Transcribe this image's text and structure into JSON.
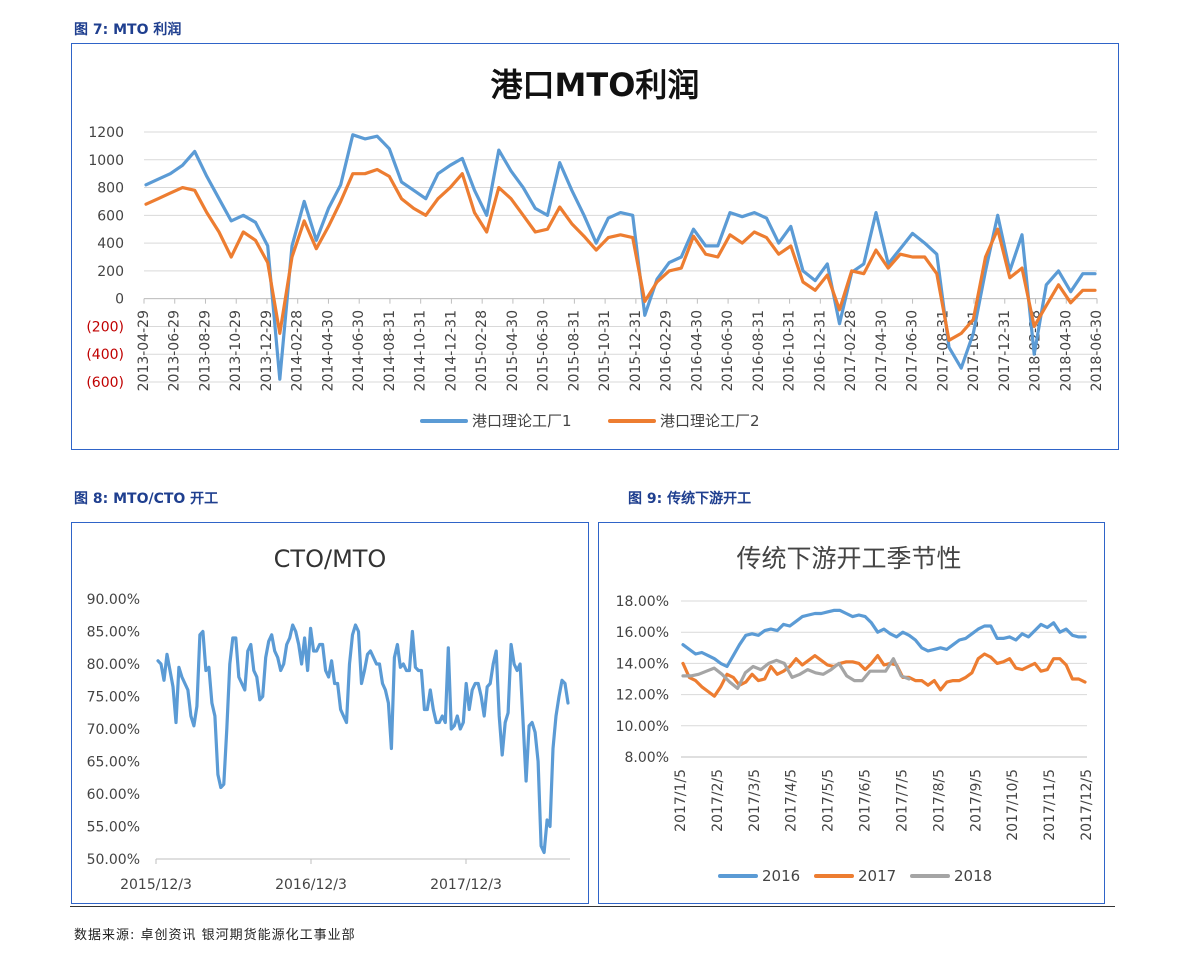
{
  "figures": [
    {
      "label": "图 7: MTO 利润"
    },
    {
      "label": "图 8: MTO/CTO 开工"
    },
    {
      "label": "图 9: 传统下游开工"
    }
  ],
  "source": "数据来源: 卓创资讯  银河期货能源化工事业部",
  "colors": {
    "blue": "#5b9bd5",
    "orange": "#ed7d31",
    "gray": "#a5a5a5",
    "border": "#2f64c8",
    "negative": "#c00000"
  },
  "chart_data": [
    {
      "type": "line",
      "title": "港口MTO利润",
      "ylim": [
        -600,
        1200
      ],
      "yticks": [
        "1200",
        "1000",
        "800",
        "600",
        "400",
        "200",
        "0",
        "(200)",
        "(400)",
        "(600)"
      ],
      "ytick_values": [
        1200,
        1000,
        800,
        600,
        400,
        200,
        0,
        -200,
        -400,
        -600
      ],
      "ytick_negative_color": "#c00000",
      "xticks": [
        "2013-04-29",
        "2013-06-29",
        "2013-08-29",
        "2013-10-29",
        "2013-12-29",
        "2014-02-28",
        "2014-04-30",
        "2014-06-30",
        "2014-08-31",
        "2014-10-31",
        "2014-12-31",
        "2015-02-28",
        "2015-04-30",
        "2015-06-30",
        "2015-08-31",
        "2015-10-31",
        "2015-12-31",
        "2016-02-29",
        "2016-04-30",
        "2016-06-30",
        "2016-08-31",
        "2016-10-31",
        "2016-12-31",
        "2017-02-28",
        "2017-04-30",
        "2017-06-30",
        "2017-08-31",
        "2017-10-31",
        "2017-12-31",
        "2018-02-28",
        "2018-04-30",
        "2018-06-30"
      ],
      "legend_position": "bottom",
      "grid": true,
      "series": [
        {
          "name": "港口理论工厂1",
          "color": "#5b9bd5",
          "values": [
            820,
            860,
            900,
            960,
            1060,
            880,
            720,
            560,
            600,
            550,
            380,
            -580,
            380,
            700,
            420,
            650,
            820,
            1180,
            1150,
            1170,
            1080,
            840,
            780,
            720,
            900,
            960,
            1010,
            780,
            600,
            1070,
            920,
            800,
            650,
            600,
            980,
            780,
            600,
            400,
            580,
            620,
            600,
            -120,
            140,
            260,
            300,
            500,
            380,
            380,
            620,
            590,
            620,
            580,
            400,
            520,
            200,
            130,
            250,
            -180,
            190,
            250,
            620,
            250,
            360,
            470,
            400,
            320,
            -350,
            -500,
            -250,
            200,
            600,
            200,
            460,
            -400,
            100,
            200,
            50,
            180,
            180
          ]
        },
        {
          "name": "港口理论工厂2",
          "color": "#ed7d31",
          "values": [
            680,
            720,
            760,
            800,
            780,
            620,
            480,
            300,
            480,
            420,
            260,
            -250,
            300,
            560,
            360,
            520,
            700,
            900,
            900,
            930,
            880,
            720,
            650,
            600,
            720,
            800,
            900,
            620,
            480,
            800,
            720,
            600,
            480,
            500,
            660,
            540,
            450,
            350,
            440,
            460,
            440,
            -20,
            120,
            200,
            220,
            450,
            320,
            300,
            460,
            400,
            480,
            440,
            320,
            380,
            120,
            60,
            170,
            -80,
            200,
            180,
            350,
            220,
            320,
            300,
            300,
            180,
            -300,
            -250,
            -150,
            300,
            500,
            150,
            220,
            -200,
            -50,
            100,
            -30,
            60,
            60
          ]
        }
      ]
    },
    {
      "type": "line",
      "title": "CTO/MTO",
      "ylim": [
        50,
        90
      ],
      "yticks": [
        "90.00%",
        "85.00%",
        "80.00%",
        "75.00%",
        "70.00%",
        "65.00%",
        "60.00%",
        "55.00%",
        "50.00%"
      ],
      "ytick_values": [
        90,
        85,
        80,
        75,
        70,
        65,
        60,
        55,
        50
      ],
      "xticks": [
        "2015/12/3",
        "2016/12/3",
        "2017/12/3"
      ],
      "series": [
        {
          "name": "",
          "color": "#5b9bd5",
          "values": [
            80.5,
            80,
            77.5,
            81.5,
            79,
            76.5,
            71,
            79.5,
            78,
            77,
            76,
            72,
            70.5,
            73.5,
            84.5,
            85,
            79,
            79.5,
            74,
            72,
            63,
            61,
            61.5,
            70,
            80,
            84,
            84,
            78,
            77,
            76,
            82,
            83,
            79,
            78,
            74.5,
            75,
            81,
            83.5,
            84.5,
            82,
            81,
            79,
            80,
            83,
            84,
            86,
            85,
            83,
            80,
            84,
            79,
            85.5,
            82,
            82,
            83,
            83,
            79,
            78,
            80.5,
            77,
            77,
            73,
            72,
            71,
            80,
            84.5,
            86,
            85,
            77,
            79,
            81.5,
            82,
            81,
            80,
            80,
            77,
            76,
            74,
            67,
            81,
            83,
            79.5,
            80,
            79,
            79,
            85,
            79.5,
            79,
            79,
            73,
            73,
            76,
            73,
            71,
            71,
            72,
            71,
            82.5,
            70,
            70.5,
            72,
            70,
            71,
            77,
            73,
            76,
            77,
            77,
            75,
            72,
            76.5,
            77,
            80,
            82,
            72,
            66,
            71,
            72.5,
            83,
            80,
            79,
            80,
            71,
            62,
            70.5,
            71,
            69.5,
            65,
            52,
            51,
            56,
            55,
            67,
            72,
            75,
            77.5,
            77,
            74
          ]
        }
      ]
    },
    {
      "type": "line",
      "title": "传统下游开工季节性",
      "ylim": [
        8,
        18
      ],
      "yticks": [
        "18.00%",
        "16.00%",
        "14.00%",
        "12.00%",
        "10.00%",
        "8.00%"
      ],
      "ytick_values": [
        18,
        16,
        14,
        12,
        10,
        8
      ],
      "xticks": [
        "2017/1/5",
        "2017/2/5",
        "2017/3/5",
        "2017/4/5",
        "2017/5/5",
        "2017/6/5",
        "2017/7/5",
        "2017/8/5",
        "2017/9/5",
        "2017/10/5",
        "2017/11/5",
        "2017/12/5"
      ],
      "legend_position": "bottom",
      "series": [
        {
          "name": "2016",
          "color": "#5b9bd5",
          "values": [
            15.2,
            14.9,
            14.6,
            14.7,
            14.5,
            14.3,
            14.0,
            13.8,
            14.5,
            15.2,
            15.8,
            15.9,
            15.8,
            16.1,
            16.2,
            16.1,
            16.5,
            16.4,
            16.7,
            17.0,
            17.1,
            17.2,
            17.2,
            17.3,
            17.4,
            17.4,
            17.2,
            17.0,
            17.1,
            17.0,
            16.6,
            16.0,
            16.2,
            15.9,
            15.7,
            16.0,
            15.8,
            15.5,
            15.0,
            14.8,
            14.9,
            15.0,
            14.9,
            15.2,
            15.5,
            15.6,
            15.9,
            16.2,
            16.4,
            16.4,
            15.6,
            15.6,
            15.7,
            15.5,
            15.9,
            15.7,
            16.1,
            16.5,
            16.3,
            16.6,
            16.0,
            16.2,
            15.8,
            15.7,
            15.7
          ]
        },
        {
          "name": "2017",
          "color": "#ed7d31",
          "values": [
            14.0,
            13.1,
            12.9,
            12.5,
            12.2,
            11.9,
            12.5,
            13.3,
            13.1,
            12.6,
            12.8,
            13.3,
            12.9,
            13.0,
            13.8,
            13.3,
            13.5,
            13.8,
            14.3,
            13.9,
            14.2,
            14.5,
            14.2,
            13.9,
            13.8,
            14.0,
            14.1,
            14.1,
            14.0,
            13.6,
            14.0,
            14.5,
            13.9,
            14.0,
            13.9,
            13.1,
            13.1,
            12.9,
            12.9,
            12.6,
            12.9,
            12.3,
            12.8,
            12.9,
            12.9,
            13.1,
            13.4,
            14.3,
            14.6,
            14.4,
            14.0,
            14.1,
            14.3,
            13.7,
            13.6,
            13.8,
            14.0,
            13.5,
            13.6,
            14.3,
            14.3,
            13.9,
            13.0,
            13.0,
            12.8
          ]
        },
        {
          "name": "2018",
          "color": "#a5a5a5",
          "values": [
            13.2,
            13.2,
            13.3,
            13.5,
            13.7,
            13.3,
            12.8,
            12.4,
            13.4,
            13.8,
            13.6,
            14.0,
            14.2,
            14.0,
            13.1,
            13.3,
            13.6,
            13.4,
            13.3,
            13.6,
            14.0,
            13.2,
            12.9,
            12.9,
            13.5,
            13.5,
            13.5,
            14.3,
            13.2,
            13.0
          ]
        }
      ]
    }
  ]
}
